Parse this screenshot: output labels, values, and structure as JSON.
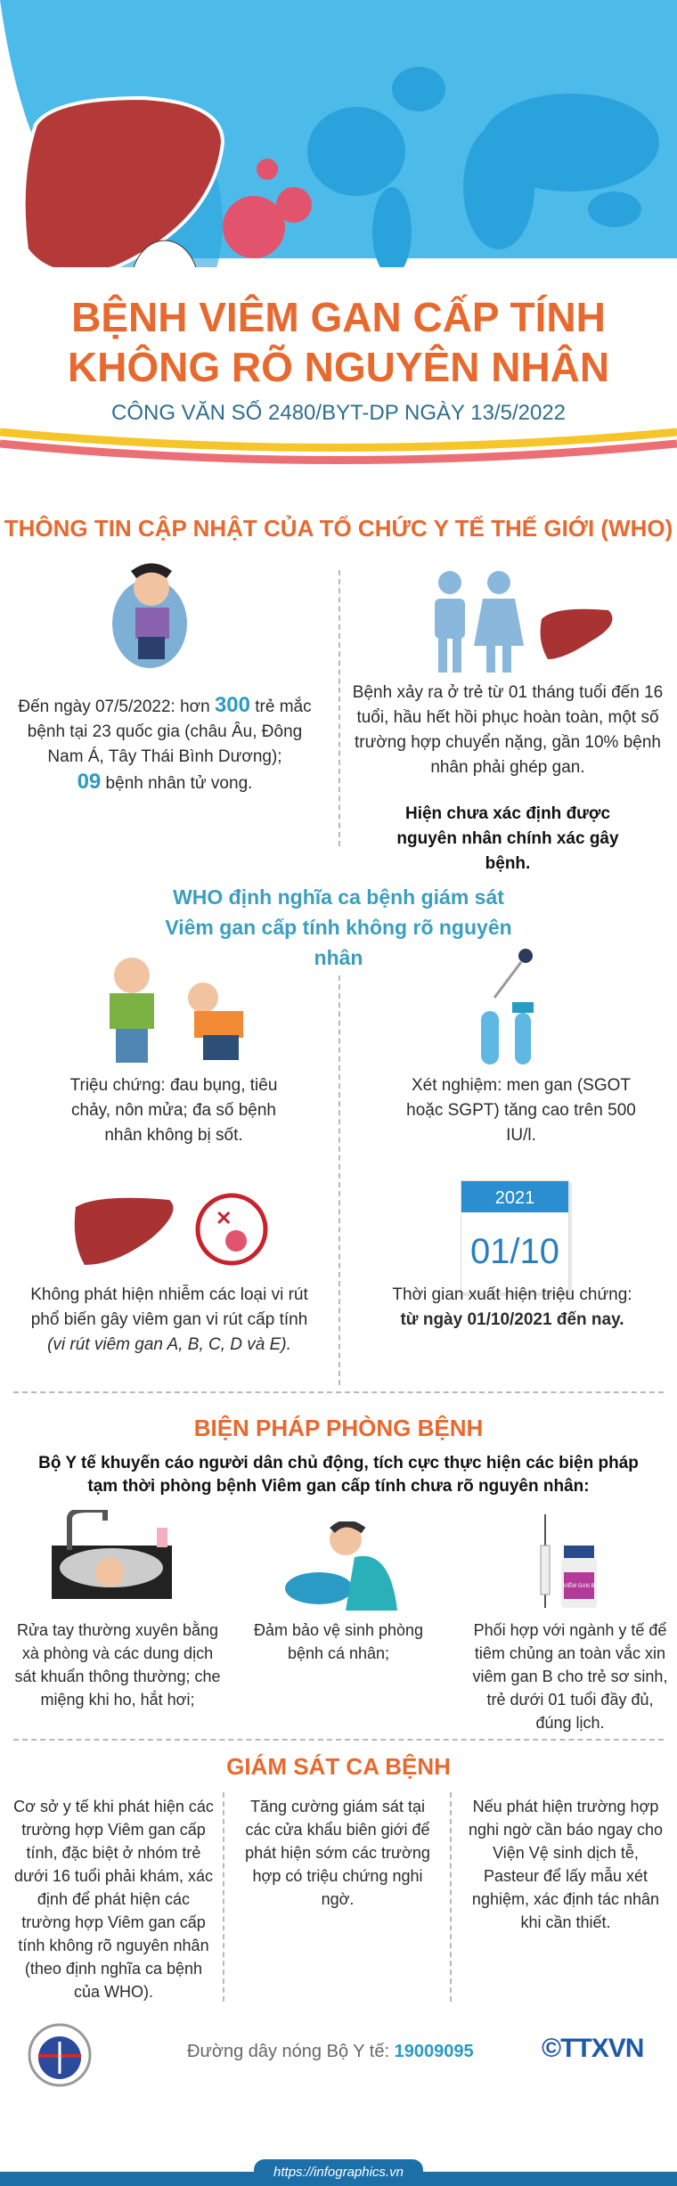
{
  "header": {
    "title_line1": "BỆNH VIÊM GAN CẤP TÍNH",
    "title_line2": "KHÔNG RÕ NGUYÊN NHÂN",
    "subtitle": "CÔNG VĂN SỐ 2480/BYT-DP NGÀY 13/5/2022"
  },
  "colors": {
    "orange": "#e8692e",
    "teal": "#2a9bc4",
    "sky": "#4dbbe9",
    "map": "#2aa3dc",
    "liver": "#a93232"
  },
  "who": {
    "heading": "THÔNG TIN CẬP NHẬT CỦA TỔ CHỨC Y TẾ THẾ GIỚI (WHO)",
    "left": {
      "pre": "Đến ngày 07/5/2022: hơn ",
      "num1": "300",
      "mid": " trẻ mắc bệnh tại 23 quốc gia (châu Âu, Đông Nam Á, Tây Thái Bình Dương);",
      "num2": "09",
      "post": " bệnh nhân tử vong."
    },
    "right": {
      "text": "Bệnh xảy ra ở trẻ từ 01 tháng tuổi đến 16 tuổi, hầu hết hồi phục hoàn toàn, một số trường hợp chuyển nặng, gần 10% bệnh nhân phải ghép gan.",
      "bold": "Hiện chưa xác định được nguyên nhân chính xác gây bệnh."
    }
  },
  "definition": {
    "heading": "WHO định nghĩa ca bệnh giám sát Viêm gan cấp tính không rõ nguyên nhân",
    "symptoms": "Triệu chứng: đau bụng, tiêu chảy, nôn mửa; đa số bệnh nhân không bị sốt.",
    "test": "Xét nghiệm: men gan (SGOT hoặc SGPT) tăng cao trên 500 IU/l.",
    "virus": "Không phát hiện nhiễm các loại vi rút phổ biến gây viêm gan vi rút cấp tính",
    "virus_italic": "(vi rút viêm gan A, B, C, D và E).",
    "time": "Thời gian xuất hiện triệu chứng:",
    "time_bold": "từ ngày 01/10/2021 đến nay.",
    "calendar_year": "2021",
    "calendar_date": "01/10"
  },
  "prevention": {
    "heading": "BIỆN PHÁP PHÒNG BỆNH",
    "intro": "Bộ Y tế khuyến cáo người dân chủ động, tích cực thực hiện các biện pháp tạm thời phòng bệnh Viêm gan cấp tính chưa rõ nguyên nhân:",
    "items": [
      "Rửa tay thường xuyên bằng xà phòng và các dung dịch sát khuẩn thông thường; che miệng khi ho, hắt hơi;",
      "Đảm bảo vệ sinh phòng bệnh cá nhân;",
      "Phối hợp với ngành y tế để tiêm chủng an toàn vắc xin viêm gan B cho trẻ sơ sinh, trẻ dưới 01 tuổi đầy đủ, đúng lịch."
    ],
    "vial_label": "VIÊM GAN B"
  },
  "surveillance": {
    "heading": "GIÁM SÁT CA BỆNH",
    "items": [
      "Cơ sở y tế khi phát hiện các trường hợp Viêm gan cấp tính, đặc biệt ở nhóm trẻ dưới 16 tuổi phải khám, xác định để phát hiện các trường hợp Viêm gan cấp tính không rõ nguyên nhân (theo định nghĩa ca bệnh của WHO).",
      "Tăng cường giám sát tại các cửa khẩu biên giới để phát hiện sớm các trường hợp có triệu chứng nghi ngờ.",
      "Nếu phát hiện trường hợp nghi ngờ cần báo ngay cho Viện Vệ sinh dịch tễ, Pasteur để lấy mẫu xét nghiệm, xác định tác nhân khi cần thiết."
    ]
  },
  "footer": {
    "hotline_label": "Đường dây nóng Bộ Y tế: ",
    "hotline": "19009095",
    "moh_logo": "BỘ Y TẾ MINISTRY OF HEALTH",
    "ttxvn_logo": "©TTXVN Vietnam News Agency",
    "url": "https://infographics.vn"
  }
}
